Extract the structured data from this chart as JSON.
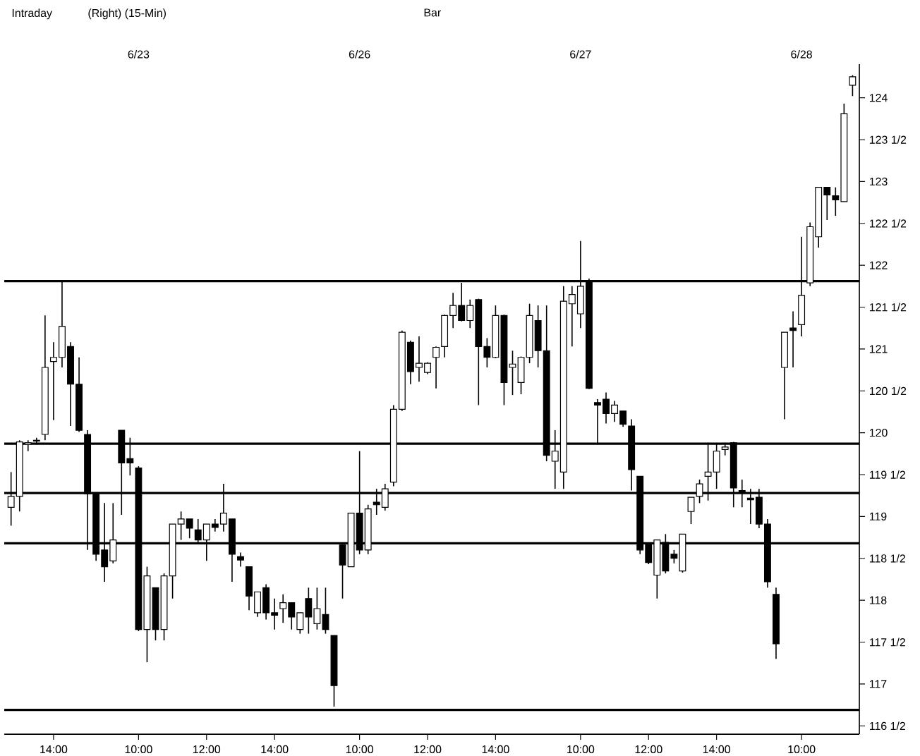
{
  "chart_data": {
    "type": "candlestick",
    "title": "Intraday",
    "subtitle": "(Right) (15-Min)",
    "annotations": [
      "Bar",
      "6/23",
      "6/26",
      "6/27",
      "6/28"
    ],
    "categories": [
      null,
      null,
      null,
      null,
      null,
      "14:00",
      null,
      null,
      null,
      null,
      null,
      null,
      null,
      null,
      null,
      "10:00",
      null,
      null,
      null,
      null,
      null,
      null,
      null,
      "12:00",
      null,
      null,
      null,
      null,
      null,
      null,
      null,
      "14:00",
      null,
      null,
      null,
      null,
      null,
      null,
      null,
      null,
      null,
      "10:00",
      null,
      null,
      null,
      null,
      null,
      null,
      null,
      "12:00",
      null,
      null,
      null,
      null,
      null,
      null,
      null,
      "14:00",
      null,
      null,
      null,
      null,
      null,
      null,
      null,
      null,
      null,
      "10:00",
      null,
      null,
      null,
      null,
      null,
      null,
      null,
      "12:00",
      null,
      null,
      null,
      null,
      null,
      null,
      null,
      "14:00",
      null,
      null,
      null,
      null,
      null,
      null,
      null,
      null,
      null,
      "10:00",
      null,
      null,
      null,
      null,
      null,
      null
    ],
    "ohlc": [
      [
        119.11,
        119.53,
        118.89,
        119.24
      ],
      [
        119.24,
        119.91,
        119.06,
        119.89
      ],
      [
        119.86,
        119.91,
        119.78,
        119.88
      ],
      [
        119.9,
        119.94,
        119.86,
        119.91
      ],
      [
        119.98,
        121.4,
        119.91,
        120.78
      ],
      [
        120.85,
        121.08,
        120.15,
        120.9
      ],
      [
        120.9,
        121.82,
        120.78,
        121.27
      ],
      [
        121.03,
        121.08,
        120.08,
        120.58
      ],
      [
        120.58,
        120.9,
        120.01,
        120.03
      ],
      [
        119.98,
        120.03,
        118.6,
        119.27
      ],
      [
        119.27,
        119.27,
        118.47,
        118.55
      ],
      [
        118.6,
        119.16,
        118.22,
        118.4
      ],
      [
        118.47,
        119.16,
        118.44,
        118.72
      ],
      [
        120.03,
        120.03,
        119.02,
        119.64
      ],
      [
        119.69,
        119.94,
        119.49,
        119.64
      ],
      [
        119.58,
        119.6,
        117.63,
        117.65
      ],
      [
        117.65,
        118.4,
        117.26,
        118.29
      ],
      [
        118.15,
        118.15,
        117.52,
        117.65
      ],
      [
        117.65,
        118.32,
        117.52,
        118.29
      ],
      [
        118.29,
        118.91,
        118.02,
        118.91
      ],
      [
        118.91,
        119.06,
        118.72,
        118.97
      ],
      [
        118.97,
        118.97,
        118.74,
        118.86
      ],
      [
        118.84,
        118.97,
        118.69,
        118.72
      ],
      [
        118.72,
        118.91,
        118.47,
        118.91
      ],
      [
        118.91,
        118.97,
        118.82,
        118.87
      ],
      [
        118.91,
        119.39,
        118.82,
        119.04
      ],
      [
        118.97,
        118.97,
        118.22,
        118.55
      ],
      [
        118.52,
        118.57,
        118.4,
        118.48
      ],
      [
        118.4,
        118.4,
        117.88,
        118.05
      ],
      [
        117.85,
        118.1,
        117.8,
        118.1
      ],
      [
        118.15,
        118.19,
        117.77,
        117.85
      ],
      [
        117.85,
        118.02,
        117.65,
        117.82
      ],
      [
        117.9,
        118.07,
        117.73,
        117.97
      ],
      [
        117.97,
        117.97,
        117.65,
        117.8
      ],
      [
        117.65,
        117.85,
        117.6,
        117.85
      ],
      [
        118.02,
        118.15,
        117.6,
        117.8
      ],
      [
        117.72,
        118.15,
        117.65,
        117.9
      ],
      [
        117.83,
        118.15,
        117.6,
        117.65
      ],
      [
        117.58,
        117.58,
        116.73,
        116.98
      ],
      [
        118.66,
        118.66,
        118.02,
        118.42
      ],
      [
        118.4,
        119.04,
        118.4,
        119.04
      ],
      [
        119.04,
        119.78,
        118.55,
        118.6
      ],
      [
        118.6,
        119.14,
        118.55,
        119.09
      ],
      [
        119.17,
        119.33,
        119.02,
        119.14
      ],
      [
        119.11,
        119.39,
        119.07,
        119.33
      ],
      [
        119.41,
        120.33,
        119.36,
        120.28
      ],
      [
        120.28,
        121.22,
        120.26,
        121.2
      ],
      [
        121.08,
        121.1,
        120.58,
        120.73
      ],
      [
        120.78,
        121.15,
        120.61,
        120.83
      ],
      [
        120.72,
        120.84,
        120.7,
        120.83
      ],
      [
        120.9,
        121.03,
        120.53,
        121.02
      ],
      [
        121.03,
        121.41,
        120.9,
        121.4
      ],
      [
        121.4,
        121.67,
        121.25,
        121.52
      ],
      [
        121.52,
        121.79,
        121.33,
        121.34
      ],
      [
        121.34,
        121.59,
        121.25,
        121.52
      ],
      [
        121.59,
        121.6,
        120.33,
        121.03
      ],
      [
        121.03,
        121.13,
        120.78,
        120.9
      ],
      [
        120.9,
        121.52,
        120.89,
        121.4
      ],
      [
        121.4,
        121.41,
        120.33,
        120.6
      ],
      [
        120.78,
        120.98,
        120.45,
        120.82
      ],
      [
        120.6,
        120.91,
        120.46,
        120.9
      ],
      [
        120.9,
        121.54,
        120.83,
        121.4
      ],
      [
        121.34,
        121.52,
        120.78,
        120.98
      ],
      [
        120.98,
        121.52,
        119.66,
        119.73
      ],
      [
        119.66,
        120.03,
        119.33,
        119.78
      ],
      [
        119.53,
        121.75,
        119.33,
        121.57
      ],
      [
        121.54,
        121.75,
        121.03,
        121.65
      ],
      [
        121.42,
        122.29,
        121.25,
        121.75
      ],
      [
        121.82,
        121.84,
        120.52,
        120.53
      ],
      [
        120.36,
        120.4,
        119.86,
        120.33
      ],
      [
        120.4,
        120.48,
        120.11,
        120.23
      ],
      [
        120.23,
        120.38,
        120.13,
        120.33
      ],
      [
        120.26,
        120.26,
        120.07,
        120.1
      ],
      [
        120.08,
        120.16,
        119.31,
        119.56
      ],
      [
        119.48,
        119.48,
        118.55,
        118.6
      ],
      [
        118.67,
        118.67,
        118.43,
        118.45
      ],
      [
        118.3,
        118.72,
        118.02,
        118.72
      ],
      [
        118.69,
        118.79,
        118.32,
        118.35
      ],
      [
        118.55,
        118.6,
        118.44,
        118.5
      ],
      [
        118.35,
        118.79,
        118.33,
        118.79
      ],
      [
        119.06,
        119.23,
        118.91,
        119.23
      ],
      [
        119.24,
        119.44,
        119.16,
        119.39
      ],
      [
        119.48,
        119.88,
        119.19,
        119.53
      ],
      [
        119.53,
        119.88,
        119.33,
        119.78
      ],
      [
        119.8,
        119.88,
        119.73,
        119.83
      ],
      [
        119.88,
        119.89,
        119.11,
        119.34
      ],
      [
        119.31,
        119.44,
        119.11,
        119.29
      ],
      [
        119.22,
        119.33,
        118.91,
        119.2
      ],
      [
        119.23,
        119.33,
        118.86,
        118.91
      ],
      [
        118.91,
        118.97,
        118.15,
        118.22
      ],
      [
        118.07,
        118.15,
        117.3,
        117.48
      ],
      [
        120.78,
        121.2,
        120.16,
        121.2
      ],
      [
        121.25,
        121.45,
        120.78,
        121.22
      ],
      [
        121.29,
        122.34,
        121.15,
        121.64
      ],
      [
        121.79,
        122.51,
        121.75,
        122.46
      ],
      [
        122.34,
        122.93,
        122.21,
        122.93
      ],
      [
        122.93,
        122.93,
        122.54,
        122.84
      ],
      [
        122.83,
        122.93,
        122.59,
        122.78
      ],
      [
        122.76,
        123.93,
        122.76,
        123.81
      ],
      [
        124.15,
        124.27,
        124.02,
        124.25
      ]
    ],
    "ylim": [
      116.4,
      124.4
    ],
    "yticks": [
      {
        "value": 116.5,
        "label": "116 1/2"
      },
      117,
      {
        "value": 117.5,
        "label": "117 1/2"
      },
      118,
      {
        "value": 118.5,
        "label": "118 1/2"
      },
      119,
      {
        "value": 119.5,
        "label": "119 1/2"
      },
      120,
      {
        "value": 120.5,
        "label": "120 1/2"
      },
      121,
      {
        "value": 121.5,
        "label": "121 1/2"
      },
      122,
      {
        "value": 122.5,
        "label": "122 1/2"
      },
      123,
      {
        "value": 123.5,
        "label": "123 1/2"
      },
      124
    ],
    "ref_lines": [
      {
        "axis": "y",
        "value": 121.81
      },
      {
        "axis": "y",
        "value": 119.87
      },
      {
        "axis": "y",
        "value": 119.28
      },
      {
        "axis": "y",
        "value": 118.68
      },
      {
        "axis": "y",
        "value": 116.69
      }
    ]
  }
}
